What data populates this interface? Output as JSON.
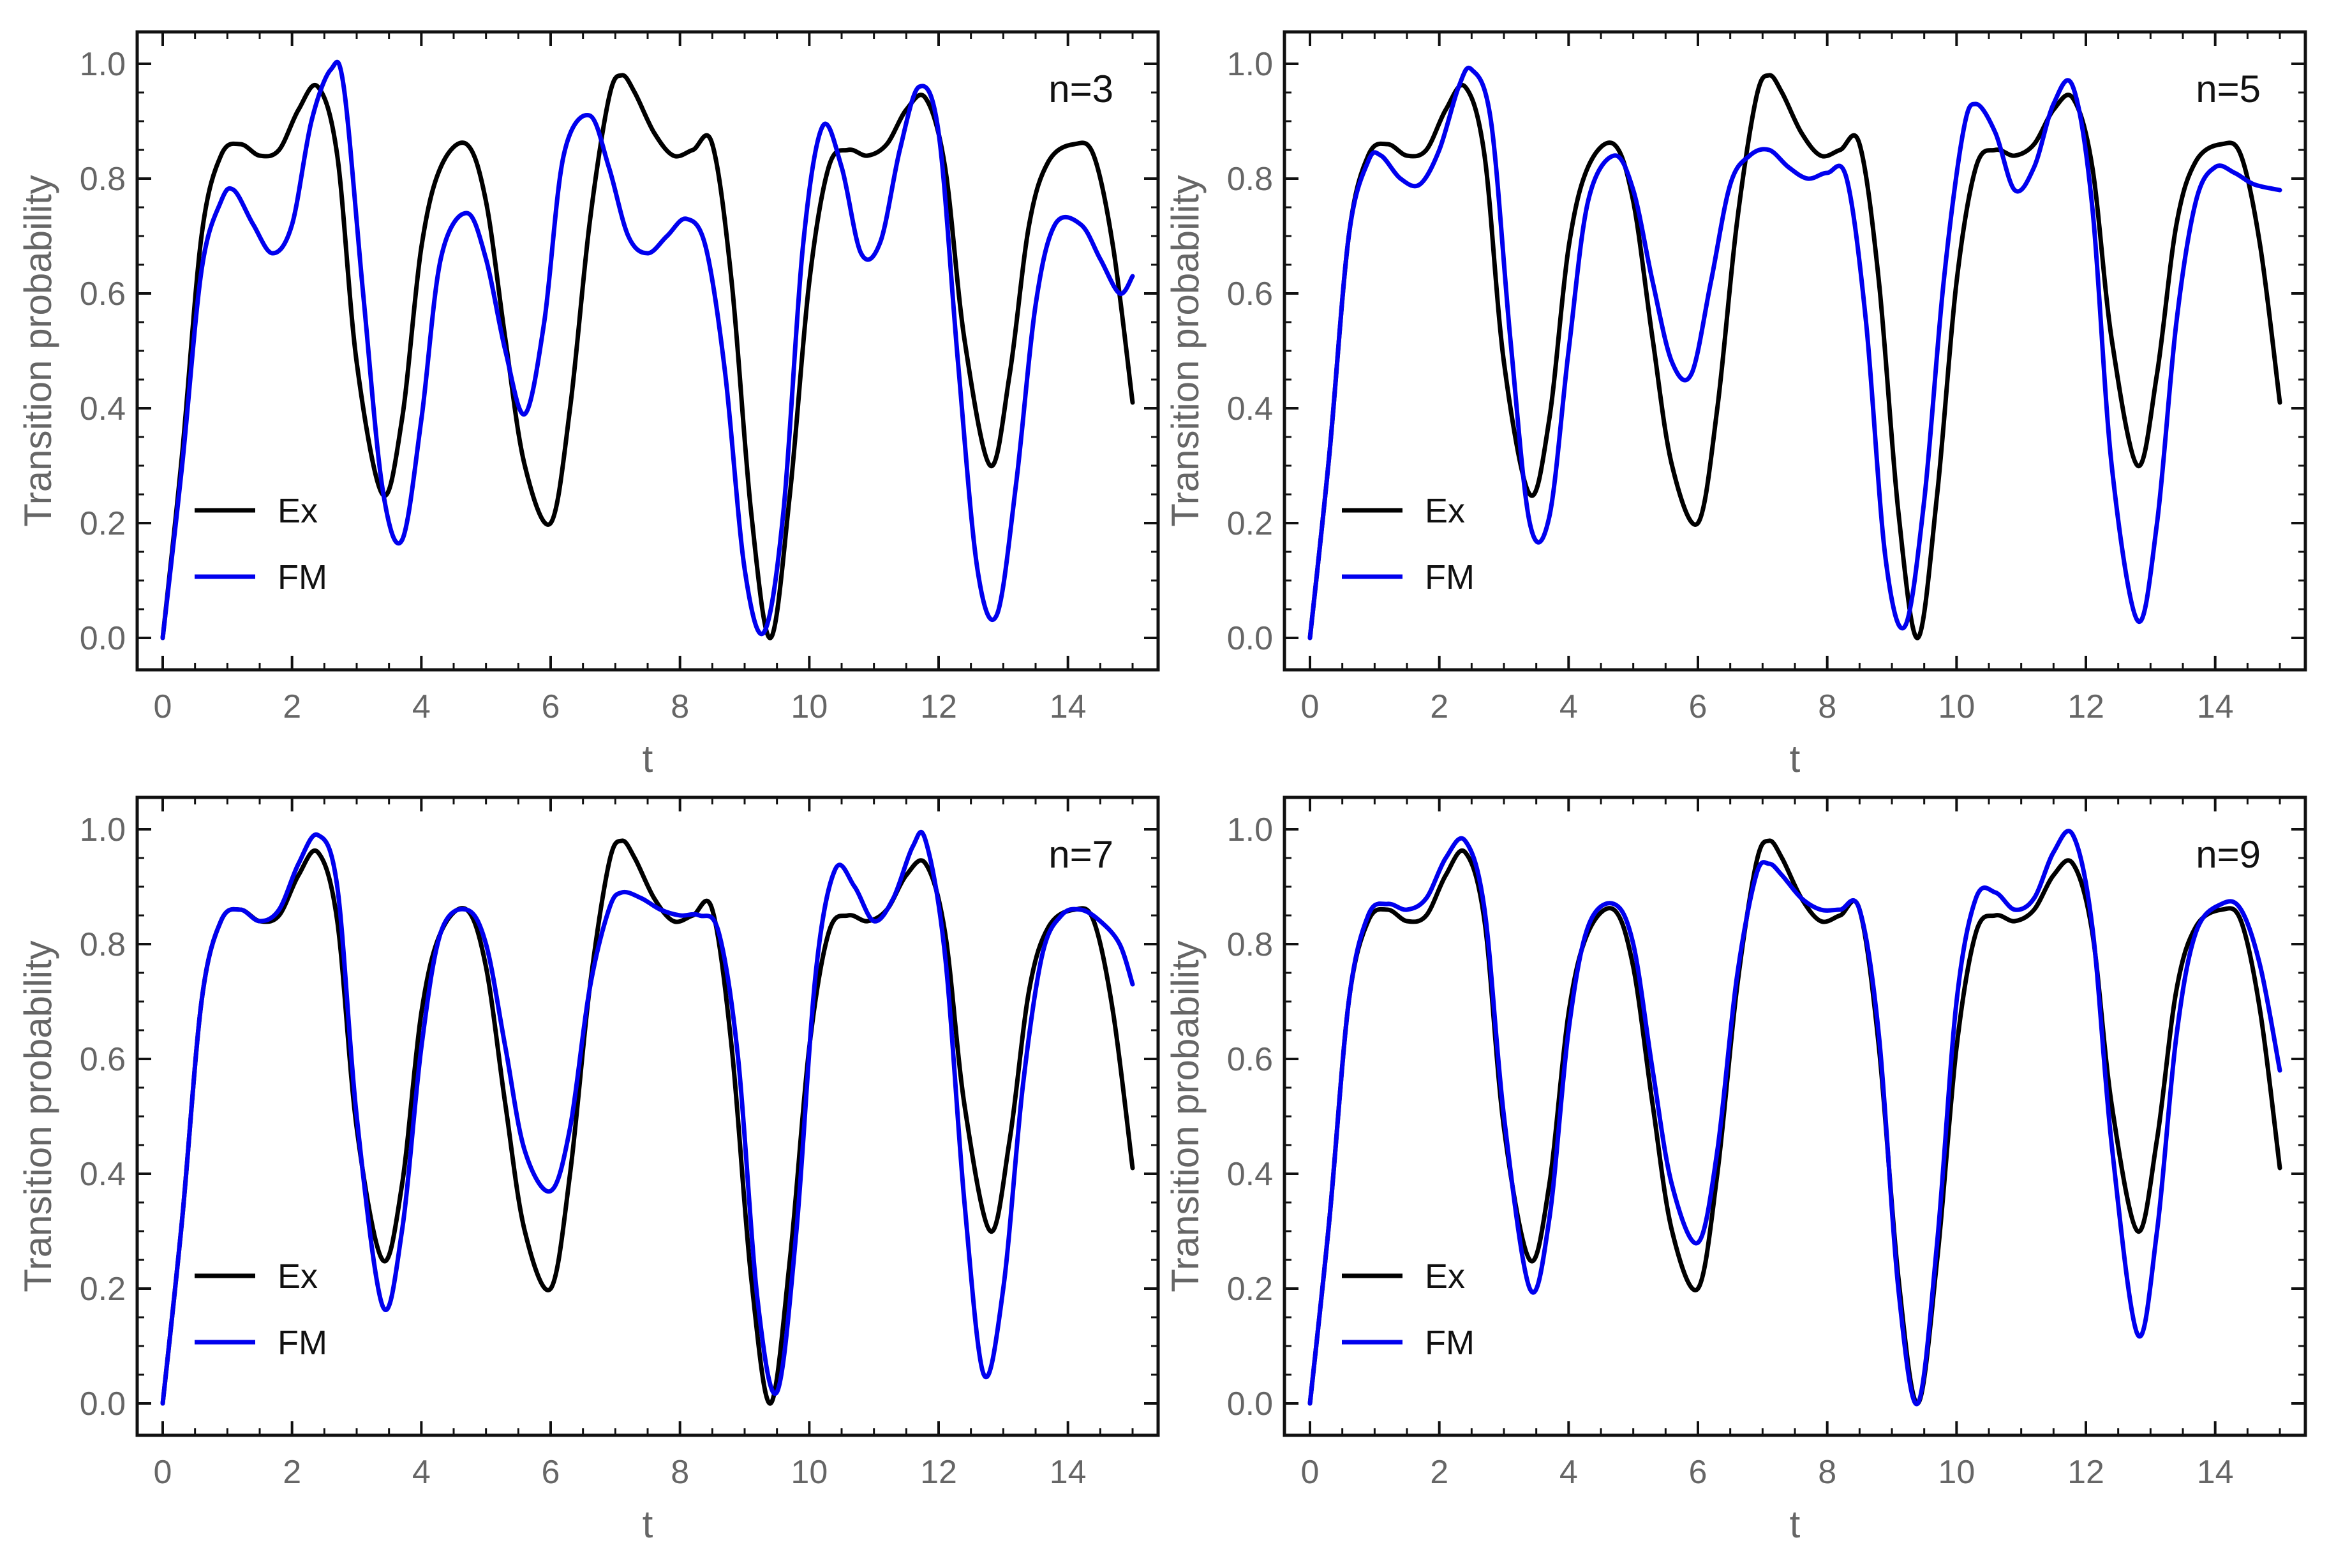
{
  "figure": {
    "colors": {
      "ex": "#000000",
      "fm": "#0000ee",
      "frame": "#111111",
      "tick_text": "#666666"
    }
  },
  "chart_data": [
    {
      "type": "line",
      "panel_label": "n=3",
      "xlabel": "t",
      "ylabel": "Transition  probability",
      "xlim": [
        0,
        15
      ],
      "ylim": [
        0,
        1.0
      ],
      "x_ticks": [
        "0",
        "2",
        "4",
        "6",
        "8",
        "10",
        "12",
        "14"
      ],
      "y_ticks": [
        "0.0",
        "0.2",
        "0.4",
        "0.6",
        "0.8",
        "1.0"
      ],
      "legend": {
        "position": "bottom-left",
        "entries": [
          "Ex",
          "FM"
        ]
      },
      "series": [
        {
          "name": "Ex",
          "color": "#000000",
          "x": [
            0,
            0.3,
            0.6,
            0.9,
            1.2,
            1.5,
            1.8,
            2.1,
            2.4,
            2.7,
            3.0,
            3.4,
            3.7,
            4.0,
            4.3,
            4.7,
            5.0,
            5.3,
            5.6,
            6.0,
            6.3,
            6.6,
            6.9,
            7.1,
            7.3,
            7.6,
            7.9,
            8.2,
            8.5,
            8.8,
            9.1,
            9.4,
            9.7,
            10.0,
            10.3,
            10.6,
            10.9,
            11.2,
            11.5,
            11.8,
            12.1,
            12.4,
            12.8,
            13.1,
            13.4,
            13.7,
            14.1,
            14.4,
            14.7,
            15.0
          ],
          "y": [
            0,
            0.32,
            0.7,
            0.84,
            0.86,
            0.84,
            0.85,
            0.92,
            0.96,
            0.84,
            0.48,
            0.25,
            0.38,
            0.68,
            0.82,
            0.86,
            0.76,
            0.52,
            0.3,
            0.2,
            0.4,
            0.72,
            0.94,
            0.98,
            0.95,
            0.88,
            0.84,
            0.85,
            0.86,
            0.62,
            0.22,
            0.0,
            0.25,
            0.62,
            0.82,
            0.85,
            0.84,
            0.86,
            0.92,
            0.94,
            0.82,
            0.52,
            0.3,
            0.46,
            0.72,
            0.83,
            0.86,
            0.84,
            0.68,
            0.41
          ]
        },
        {
          "name": "FM",
          "color": "#0000ee",
          "x": [
            0,
            0.3,
            0.6,
            0.9,
            1.1,
            1.4,
            1.7,
            2.0,
            2.3,
            2.6,
            2.8,
            3.1,
            3.4,
            3.7,
            4.0,
            4.3,
            4.7,
            5.0,
            5.3,
            5.6,
            5.9,
            6.2,
            6.6,
            6.9,
            7.2,
            7.5,
            7.8,
            8.1,
            8.4,
            8.7,
            9.0,
            9.3,
            9.6,
            9.9,
            10.2,
            10.5,
            10.8,
            11.1,
            11.4,
            11.7,
            12.0,
            12.3,
            12.6,
            12.9,
            13.2,
            13.5,
            13.8,
            14.2,
            14.5,
            14.8,
            15.0
          ],
          "y": [
            0,
            0.3,
            0.64,
            0.76,
            0.78,
            0.72,
            0.67,
            0.72,
            0.9,
            0.99,
            0.96,
            0.6,
            0.26,
            0.17,
            0.38,
            0.66,
            0.74,
            0.66,
            0.5,
            0.39,
            0.55,
            0.84,
            0.91,
            0.82,
            0.7,
            0.67,
            0.7,
            0.73,
            0.68,
            0.46,
            0.12,
            0.01,
            0.22,
            0.68,
            0.89,
            0.82,
            0.67,
            0.69,
            0.85,
            0.96,
            0.88,
            0.48,
            0.12,
            0.04,
            0.27,
            0.58,
            0.72,
            0.72,
            0.66,
            0.6,
            0.63
          ]
        }
      ]
    },
    {
      "type": "line",
      "panel_label": "n=5",
      "xlabel": "t",
      "ylabel": "Transition  probability",
      "xlim": [
        0,
        15
      ],
      "ylim": [
        0,
        1.0
      ],
      "x_ticks": [
        "0",
        "2",
        "4",
        "6",
        "8",
        "10",
        "12",
        "14"
      ],
      "y_ticks": [
        "0.0",
        "0.2",
        "0.4",
        "0.6",
        "0.8",
        "1.0"
      ],
      "legend": {
        "position": "bottom-left",
        "entries": [
          "Ex",
          "FM"
        ]
      },
      "series": [
        {
          "name": "Ex",
          "color": "#000000",
          "x": [
            0,
            0.3,
            0.6,
            0.9,
            1.2,
            1.5,
            1.8,
            2.1,
            2.4,
            2.7,
            3.0,
            3.4,
            3.7,
            4.0,
            4.3,
            4.7,
            5.0,
            5.3,
            5.6,
            6.0,
            6.3,
            6.6,
            6.9,
            7.1,
            7.3,
            7.6,
            7.9,
            8.2,
            8.5,
            8.8,
            9.1,
            9.4,
            9.7,
            10.0,
            10.3,
            10.6,
            10.9,
            11.2,
            11.5,
            11.8,
            12.1,
            12.4,
            12.8,
            13.1,
            13.4,
            13.7,
            14.1,
            14.4,
            14.7,
            15.0
          ],
          "y": [
            0,
            0.32,
            0.7,
            0.84,
            0.86,
            0.84,
            0.85,
            0.92,
            0.96,
            0.84,
            0.48,
            0.25,
            0.38,
            0.68,
            0.82,
            0.86,
            0.76,
            0.52,
            0.3,
            0.2,
            0.4,
            0.72,
            0.94,
            0.98,
            0.95,
            0.88,
            0.84,
            0.85,
            0.86,
            0.62,
            0.22,
            0.0,
            0.25,
            0.62,
            0.82,
            0.85,
            0.84,
            0.86,
            0.92,
            0.94,
            0.82,
            0.52,
            0.3,
            0.46,
            0.72,
            0.83,
            0.86,
            0.84,
            0.68,
            0.41
          ]
        },
        {
          "name": "FM",
          "color": "#0000ee",
          "x": [
            0,
            0.3,
            0.6,
            0.9,
            1.1,
            1.4,
            1.7,
            2.0,
            2.3,
            2.5,
            2.8,
            3.1,
            3.4,
            3.7,
            4.0,
            4.3,
            4.7,
            5.0,
            5.3,
            5.6,
            5.9,
            6.2,
            6.5,
            6.8,
            7.1,
            7.4,
            7.7,
            8.0,
            8.3,
            8.6,
            8.9,
            9.2,
            9.5,
            9.8,
            10.1,
            10.3,
            10.6,
            10.9,
            11.2,
            11.5,
            11.8,
            12.1,
            12.4,
            12.8,
            13.1,
            13.4,
            13.7,
            14.0,
            14.3,
            14.6,
            15.0
          ],
          "y": [
            0,
            0.32,
            0.7,
            0.83,
            0.84,
            0.8,
            0.79,
            0.85,
            0.96,
            0.99,
            0.9,
            0.52,
            0.2,
            0.21,
            0.5,
            0.76,
            0.84,
            0.78,
            0.62,
            0.48,
            0.46,
            0.62,
            0.79,
            0.84,
            0.85,
            0.82,
            0.8,
            0.81,
            0.8,
            0.55,
            0.14,
            0.02,
            0.24,
            0.62,
            0.88,
            0.93,
            0.88,
            0.78,
            0.82,
            0.93,
            0.96,
            0.75,
            0.3,
            0.03,
            0.2,
            0.55,
            0.76,
            0.82,
            0.81,
            0.79,
            0.78
          ]
        }
      ]
    },
    {
      "type": "line",
      "panel_label": "n=7",
      "xlabel": "t",
      "ylabel": "Transition  probability",
      "xlim": [
        0,
        15
      ],
      "ylim": [
        0,
        1.0
      ],
      "x_ticks": [
        "0",
        "2",
        "4",
        "6",
        "8",
        "10",
        "12",
        "14"
      ],
      "y_ticks": [
        "0.0",
        "0.2",
        "0.4",
        "0.6",
        "0.8",
        "1.0"
      ],
      "legend": {
        "position": "bottom-left",
        "entries": [
          "Ex",
          "FM"
        ]
      },
      "series": [
        {
          "name": "Ex",
          "color": "#000000",
          "x": [
            0,
            0.3,
            0.6,
            0.9,
            1.2,
            1.5,
            1.8,
            2.1,
            2.4,
            2.7,
            3.0,
            3.4,
            3.7,
            4.0,
            4.3,
            4.7,
            5.0,
            5.3,
            5.6,
            6.0,
            6.3,
            6.6,
            6.9,
            7.1,
            7.3,
            7.6,
            7.9,
            8.2,
            8.5,
            8.8,
            9.1,
            9.4,
            9.7,
            10.0,
            10.3,
            10.6,
            10.9,
            11.2,
            11.5,
            11.8,
            12.1,
            12.4,
            12.8,
            13.1,
            13.4,
            13.7,
            14.1,
            14.4,
            14.7,
            15.0
          ],
          "y": [
            0,
            0.32,
            0.7,
            0.84,
            0.86,
            0.84,
            0.85,
            0.92,
            0.96,
            0.84,
            0.48,
            0.25,
            0.38,
            0.68,
            0.82,
            0.86,
            0.76,
            0.52,
            0.3,
            0.2,
            0.4,
            0.72,
            0.94,
            0.98,
            0.95,
            0.88,
            0.84,
            0.85,
            0.86,
            0.62,
            0.22,
            0.0,
            0.25,
            0.62,
            0.82,
            0.85,
            0.84,
            0.86,
            0.92,
            0.94,
            0.82,
            0.52,
            0.3,
            0.46,
            0.72,
            0.83,
            0.86,
            0.84,
            0.68,
            0.41
          ]
        },
        {
          "name": "FM",
          "color": "#0000ee",
          "x": [
            0,
            0.3,
            0.6,
            0.9,
            1.2,
            1.5,
            1.8,
            2.1,
            2.4,
            2.7,
            3.0,
            3.4,
            3.7,
            4.0,
            4.3,
            4.7,
            5.0,
            5.3,
            5.6,
            6.0,
            6.3,
            6.6,
            6.9,
            7.1,
            7.4,
            7.7,
            8.0,
            8.3,
            8.6,
            8.9,
            9.2,
            9.5,
            9.8,
            10.1,
            10.4,
            10.7,
            11.0,
            11.3,
            11.6,
            11.8,
            12.1,
            12.4,
            12.7,
            13.0,
            13.3,
            13.6,
            13.9,
            14.2,
            14.5,
            14.8,
            15.0
          ],
          "y": [
            0,
            0.32,
            0.7,
            0.84,
            0.86,
            0.84,
            0.86,
            0.94,
            0.99,
            0.9,
            0.5,
            0.17,
            0.3,
            0.62,
            0.82,
            0.86,
            0.8,
            0.62,
            0.44,
            0.37,
            0.48,
            0.72,
            0.86,
            0.89,
            0.88,
            0.86,
            0.85,
            0.85,
            0.82,
            0.6,
            0.18,
            0.02,
            0.3,
            0.75,
            0.93,
            0.9,
            0.84,
            0.88,
            0.97,
            0.98,
            0.78,
            0.35,
            0.05,
            0.2,
            0.55,
            0.78,
            0.85,
            0.86,
            0.84,
            0.8,
            0.73
          ]
        }
      ]
    },
    {
      "type": "line",
      "panel_label": "n=9",
      "xlabel": "t",
      "ylabel": "Transition  probability",
      "xlim": [
        0,
        15
      ],
      "ylim": [
        0,
        1.0
      ],
      "x_ticks": [
        "0",
        "2",
        "4",
        "6",
        "8",
        "10",
        "12",
        "14"
      ],
      "y_ticks": [
        "0.0",
        "0.2",
        "0.4",
        "0.6",
        "0.8",
        "1.0"
      ],
      "legend": {
        "position": "bottom-left",
        "entries": [
          "Ex",
          "FM"
        ]
      },
      "series": [
        {
          "name": "Ex",
          "color": "#000000",
          "x": [
            0,
            0.3,
            0.6,
            0.9,
            1.2,
            1.5,
            1.8,
            2.1,
            2.4,
            2.7,
            3.0,
            3.4,
            3.7,
            4.0,
            4.3,
            4.7,
            5.0,
            5.3,
            5.6,
            6.0,
            6.3,
            6.6,
            6.9,
            7.1,
            7.3,
            7.6,
            7.9,
            8.2,
            8.5,
            8.8,
            9.1,
            9.4,
            9.7,
            10.0,
            10.3,
            10.6,
            10.9,
            11.2,
            11.5,
            11.8,
            12.1,
            12.4,
            12.8,
            13.1,
            13.4,
            13.7,
            14.1,
            14.4,
            14.7,
            15.0
          ],
          "y": [
            0,
            0.32,
            0.7,
            0.84,
            0.86,
            0.84,
            0.85,
            0.92,
            0.96,
            0.84,
            0.48,
            0.25,
            0.38,
            0.68,
            0.82,
            0.86,
            0.76,
            0.52,
            0.3,
            0.2,
            0.4,
            0.72,
            0.94,
            0.98,
            0.95,
            0.88,
            0.84,
            0.85,
            0.86,
            0.62,
            0.22,
            0.0,
            0.25,
            0.62,
            0.82,
            0.85,
            0.84,
            0.86,
            0.92,
            0.94,
            0.82,
            0.52,
            0.3,
            0.46,
            0.72,
            0.83,
            0.86,
            0.84,
            0.68,
            0.41
          ]
        },
        {
          "name": "FM",
          "color": "#0000ee",
          "x": [
            0,
            0.3,
            0.6,
            0.9,
            1.2,
            1.5,
            1.8,
            2.1,
            2.4,
            2.7,
            3.0,
            3.4,
            3.7,
            4.0,
            4.3,
            4.7,
            5.0,
            5.3,
            5.6,
            6.0,
            6.3,
            6.6,
            6.9,
            7.1,
            7.3,
            7.6,
            7.9,
            8.2,
            8.5,
            8.8,
            9.1,
            9.4,
            9.7,
            10.0,
            10.3,
            10.6,
            10.9,
            11.2,
            11.5,
            11.8,
            12.1,
            12.4,
            12.8,
            13.1,
            13.4,
            13.7,
            14.1,
            14.4,
            14.7,
            15.0
          ],
          "y": [
            0,
            0.32,
            0.7,
            0.85,
            0.87,
            0.86,
            0.88,
            0.95,
            0.98,
            0.86,
            0.5,
            0.2,
            0.32,
            0.65,
            0.83,
            0.87,
            0.8,
            0.58,
            0.38,
            0.28,
            0.44,
            0.74,
            0.92,
            0.94,
            0.92,
            0.88,
            0.86,
            0.86,
            0.86,
            0.64,
            0.2,
            0.0,
            0.28,
            0.7,
            0.88,
            0.89,
            0.86,
            0.88,
            0.96,
            0.99,
            0.83,
            0.45,
            0.12,
            0.3,
            0.64,
            0.82,
            0.87,
            0.86,
            0.76,
            0.58
          ]
        }
      ]
    }
  ]
}
